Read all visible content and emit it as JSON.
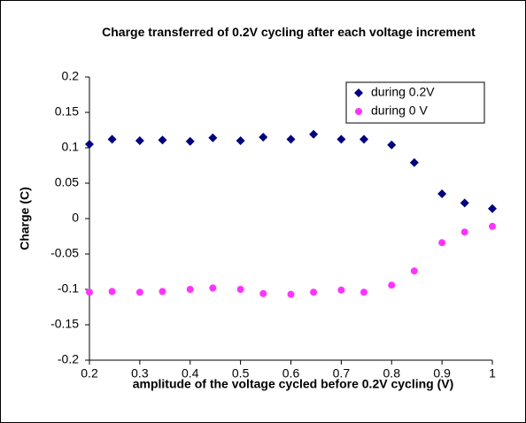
{
  "chart_data": {
    "type": "scatter",
    "title": "Charge transferred of 0.2V cycling after each voltage increment",
    "x_label": "amplitude of the voltage cycled before 0.2V cycling (V)",
    "y_label": "Charge (C)",
    "xlim": [
      0.2,
      1
    ],
    "xticks": [
      0.2,
      0.3,
      0.4,
      0.5,
      0.6,
      0.7,
      0.8,
      0.9,
      1
    ],
    "ylim": [
      -0.2,
      0.2
    ],
    "yticks": [
      -0.2,
      -0.15,
      -0.1,
      -0.05,
      0,
      0.05,
      0.1,
      0.15,
      0.2
    ],
    "grid": false,
    "legend": "top-right",
    "series": [
      {
        "name": "during 0.2V",
        "color": "#000080",
        "marker": "diamond",
        "x": [
          0.2,
          0.245,
          0.3,
          0.345,
          0.4,
          0.445,
          0.5,
          0.545,
          0.6,
          0.645,
          0.7,
          0.745,
          0.8,
          0.845,
          0.9,
          0.945,
          1.0
        ],
        "values": [
          0.105,
          0.112,
          0.11,
          0.111,
          0.109,
          0.114,
          0.11,
          0.115,
          0.112,
          0.119,
          0.112,
          0.112,
          0.104,
          0.079,
          0.035,
          0.022,
          0.014
        ]
      },
      {
        "name": "during 0 V",
        "color": "#ff33ff",
        "marker": "circle",
        "x": [
          0.2,
          0.245,
          0.3,
          0.345,
          0.4,
          0.445,
          0.5,
          0.545,
          0.6,
          0.645,
          0.7,
          0.745,
          0.8,
          0.845,
          0.9,
          0.945,
          1.0
        ],
        "values": [
          -0.104,
          -0.103,
          -0.104,
          -0.103,
          -0.1,
          -0.098,
          -0.1,
          -0.106,
          -0.107,
          -0.104,
          -0.101,
          -0.104,
          -0.094,
          -0.074,
          -0.034,
          -0.019,
          -0.011
        ]
      }
    ]
  }
}
